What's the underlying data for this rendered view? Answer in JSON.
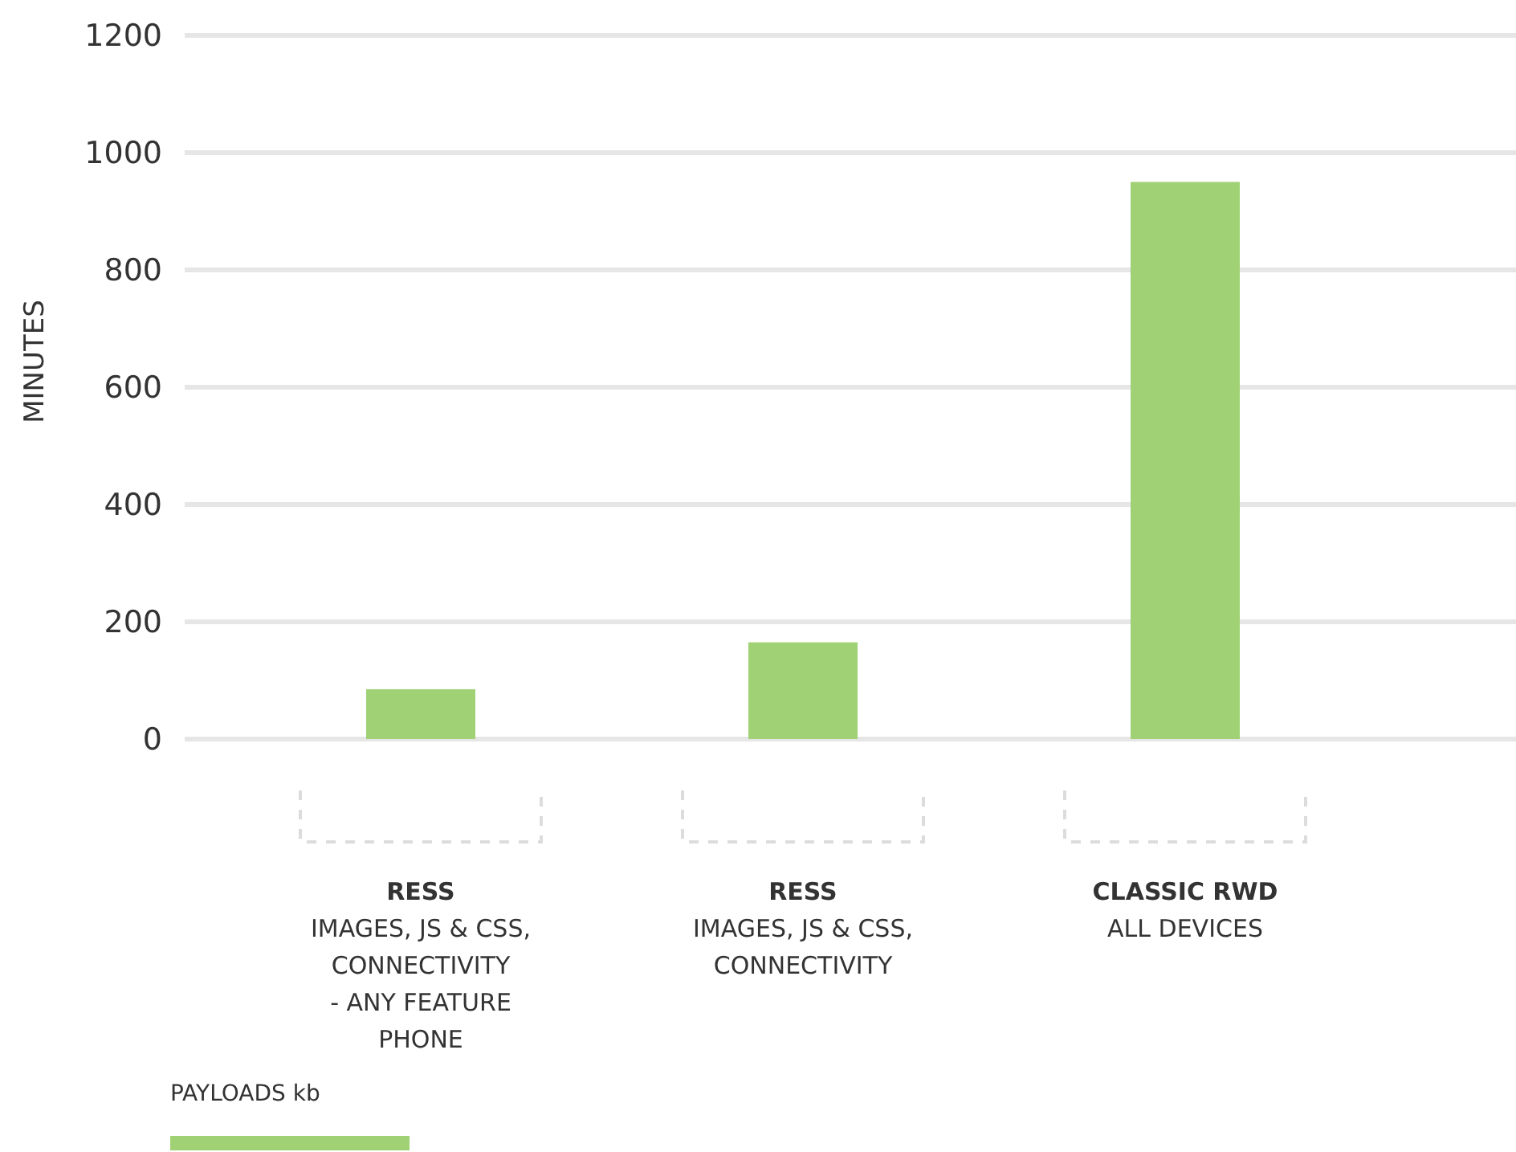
{
  "chart_data": {
    "type": "bar",
    "ylabel": "MINUTES",
    "categories": [
      "RESS\nIMAGES, JS & CSS,\nCONNECTIVITY\n- ANY FEATURE\nPHONE",
      "RESS\nIMAGES, JS & CSS,\nCONNECTIVITY",
      "CLASSIC RWD\nALL DEVICES"
    ],
    "series": [
      {
        "name": "PAYLOADS kb",
        "color": "#a0d175",
        "values": [
          85,
          165,
          950
        ]
      }
    ],
    "ylim": [
      0,
      1200
    ],
    "yticks": [
      0,
      200,
      400,
      600,
      800,
      1000,
      1200
    ],
    "grid": "y",
    "legend": "bottom left"
  }
}
